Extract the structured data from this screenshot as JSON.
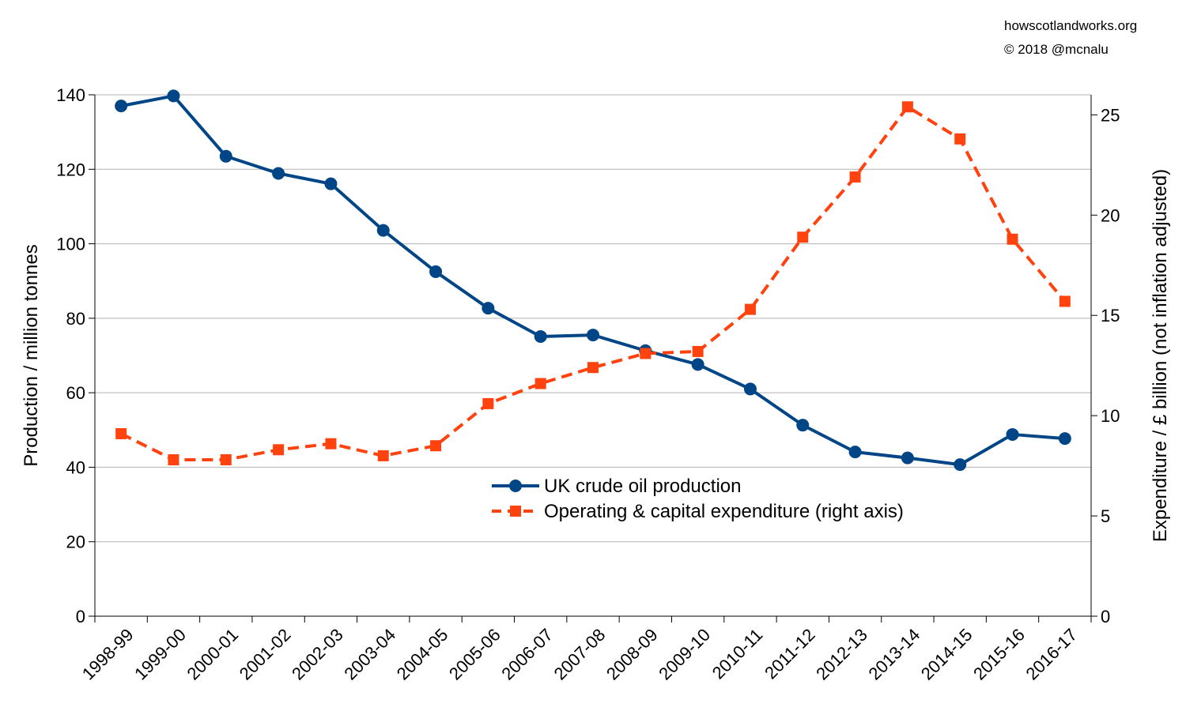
{
  "credit": {
    "site": "howscotlandworks.org",
    "copyright": "© 2018  @mcnalu"
  },
  "chart_data": {
    "type": "line",
    "title": "",
    "xlabel": "",
    "ylabel": "Production / million tonnes",
    "ylabel_right": "Expenditure / £ billion (not inflation adjusted)",
    "ylim": [
      0,
      140
    ],
    "ylim_right": [
      0,
      26
    ],
    "yticks": [
      0,
      20,
      40,
      60,
      80,
      100,
      120,
      140
    ],
    "yticks_right": [
      0,
      5,
      10,
      15,
      20,
      25
    ],
    "grid": true,
    "legend_position": "center",
    "categories": [
      "1998-99",
      "1999-00",
      "2000-01",
      "2001-02",
      "2002-03",
      "2003-04",
      "2004-05",
      "2005-06",
      "2006-07",
      "2007-08",
      "2008-09",
      "2009-10",
      "2010-11",
      "2011-12",
      "2012-13",
      "2013-14",
      "2014-15",
      "2015-16",
      "2016-17"
    ],
    "series": [
      {
        "name": "UK crude oil production",
        "axis": "left",
        "color": "#004586",
        "marker": "circle",
        "line": "solid",
        "values": [
          137,
          139.7,
          123.5,
          118.9,
          116.1,
          103.6,
          92.5,
          82.7,
          75.1,
          75.5,
          71.3,
          67.6,
          61.0,
          51.3,
          44.1,
          42.5,
          40.7,
          48.8,
          47.7
        ]
      },
      {
        "name": "Operating & capital expenditure (right axis)",
        "axis": "right",
        "color": "#ff420e",
        "marker": "square",
        "line": "dashed",
        "values": [
          9.1,
          7.8,
          7.8,
          8.3,
          8.6,
          8.0,
          8.5,
          10.6,
          11.6,
          12.4,
          13.1,
          13.2,
          15.3,
          18.9,
          21.9,
          25.4,
          23.8,
          18.8,
          15.7
        ]
      }
    ]
  }
}
